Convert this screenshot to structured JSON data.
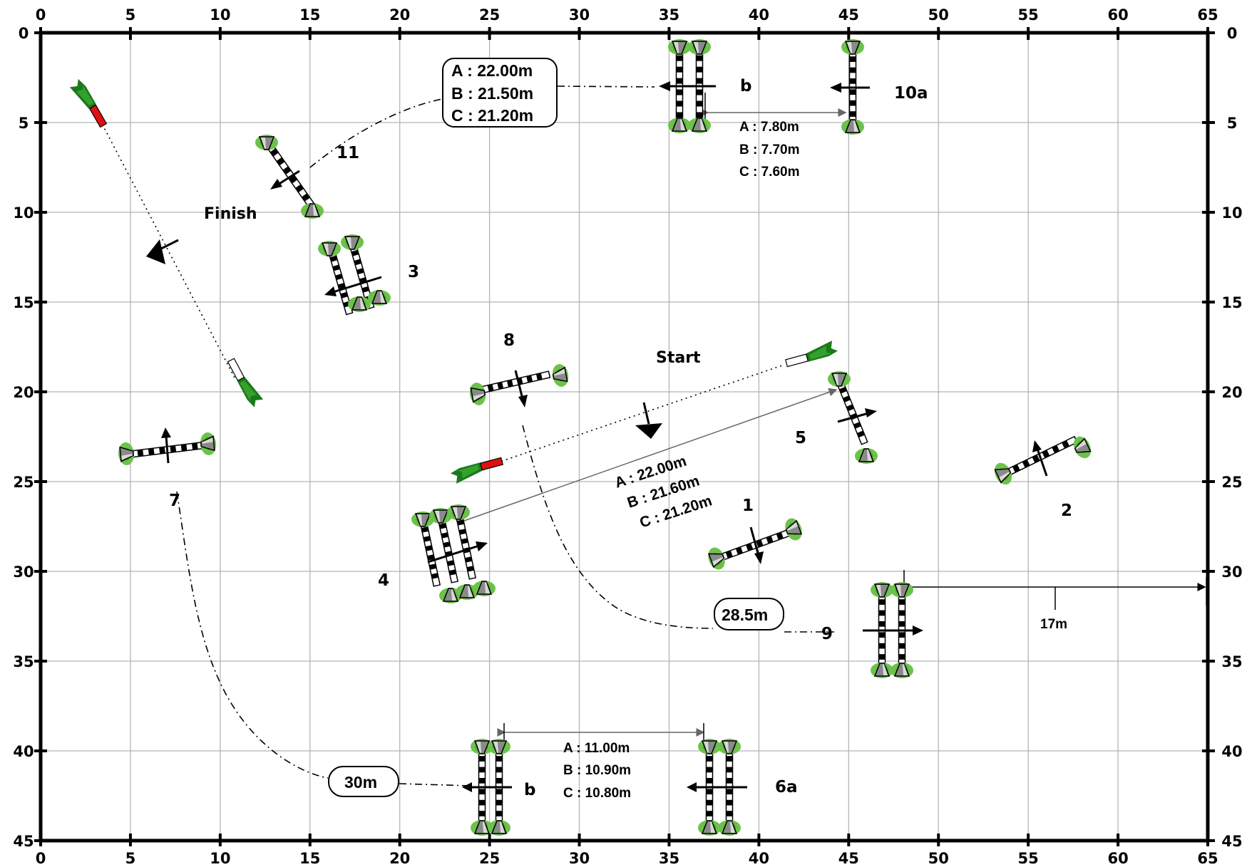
{
  "axes": {
    "top": [
      "0",
      "5",
      "10",
      "15",
      "20",
      "25",
      "30",
      "35",
      "40",
      "45",
      "50",
      "55",
      "60",
      "65"
    ],
    "bottom": [
      "0",
      "5",
      "10",
      "15",
      "20",
      "25",
      "30",
      "35",
      "40",
      "45",
      "50",
      "55",
      "60",
      "65"
    ],
    "left": [
      "0",
      "5",
      "10",
      "15",
      "20",
      "25",
      "30",
      "35",
      "40",
      "45"
    ],
    "right": [
      "0",
      "5",
      "10",
      "15",
      "20",
      "25",
      "30",
      "35",
      "40",
      "45"
    ]
  },
  "obstacles": {
    "o1": "1",
    "o2": "2",
    "o3": "3",
    "o4": "4",
    "o5": "5",
    "o6a": "6a",
    "o6b": "b",
    "o7": "7",
    "o8": "8",
    "o9": "9",
    "o10a": "10a",
    "o10b": "b",
    "o11": "11"
  },
  "labels": {
    "start": "Start",
    "finish": "Finish"
  },
  "distances": {
    "d11_10": [
      "A : 22.00m",
      "B : 21.50m",
      "C : 21.20m"
    ],
    "d10": [
      "A : 7.80m",
      "B : 7.70m",
      "C : 7.60m"
    ],
    "d5_4": [
      "A : 22.00m",
      "B : 21.60m",
      "C : 21.20m"
    ],
    "d6": [
      "A : 11.00m",
      "B : 10.90m",
      "C : 10.80m"
    ],
    "d8_9": "28.5m",
    "d7_6": "30m",
    "d9_edge": "17m"
  },
  "colors": {
    "grid": "#b5b5b5",
    "foliage": "#6cc24a",
    "flag_red": "#e01010",
    "flag_green": "#1a7a1a"
  }
}
